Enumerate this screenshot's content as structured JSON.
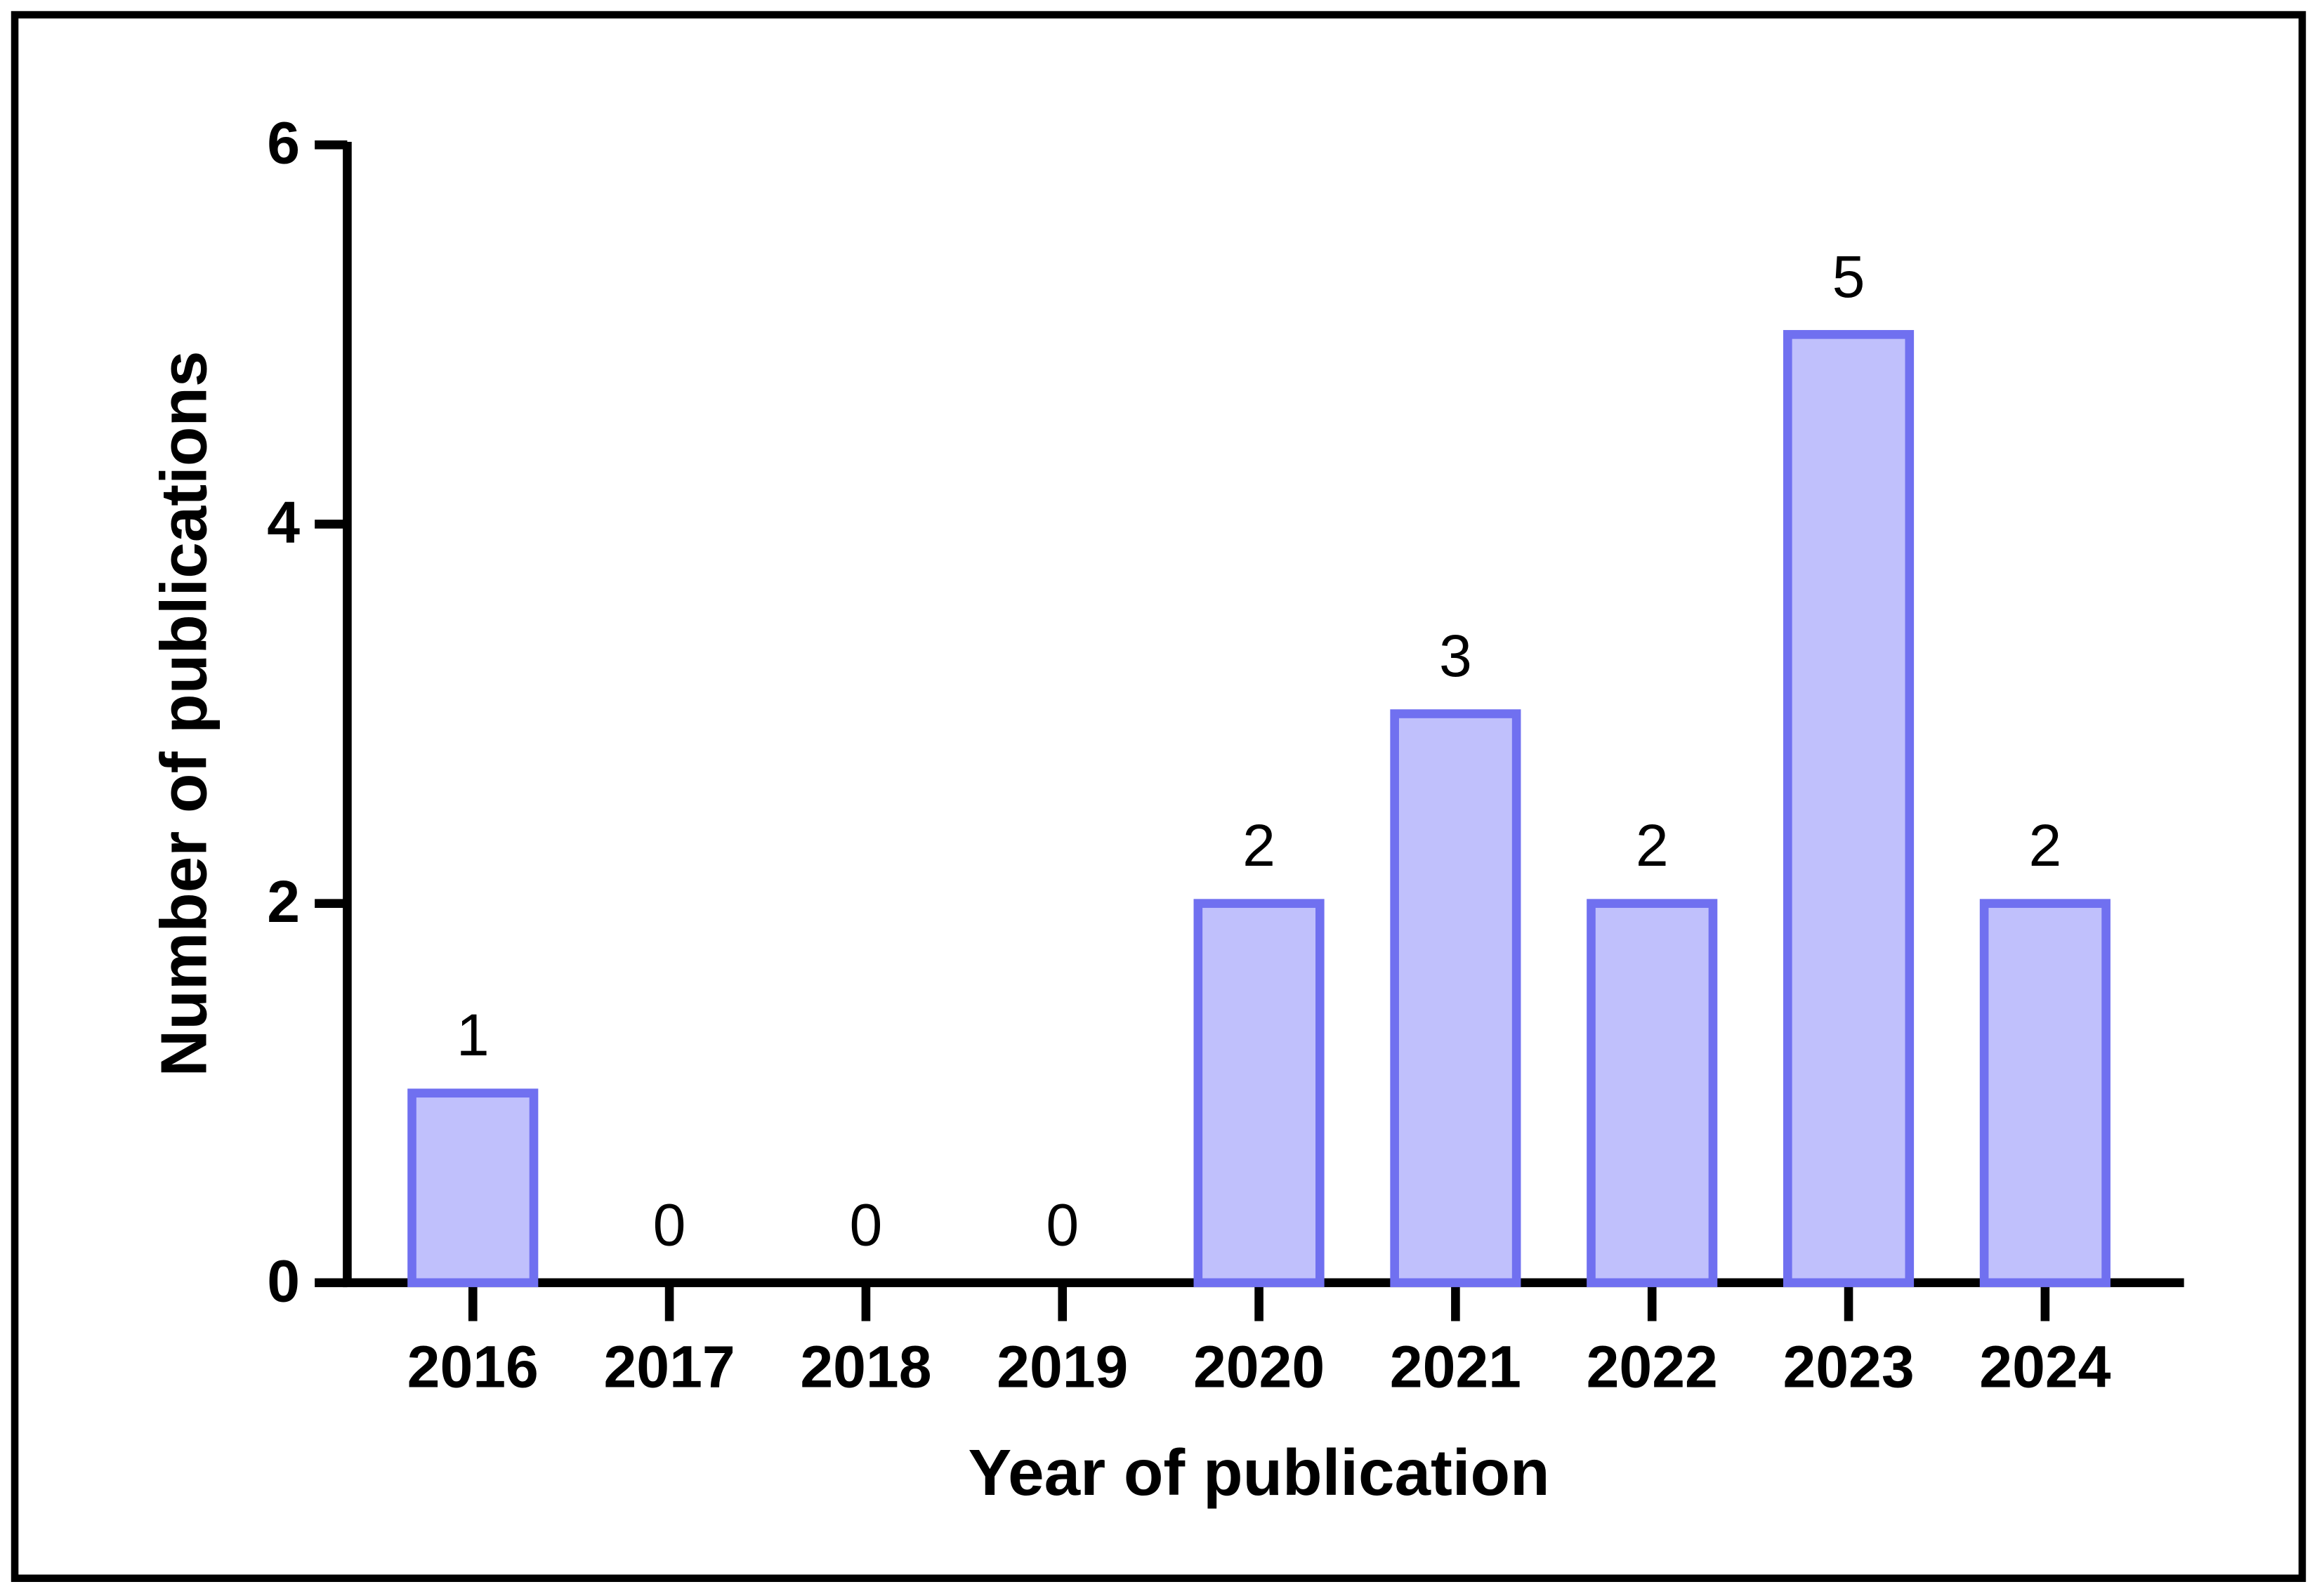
{
  "chart_data": {
    "type": "bar",
    "x_label": "Year of publication",
    "y_label": "Number of publications",
    "categories": [
      "2016",
      "2017",
      "2018",
      "2019",
      "2020",
      "2021",
      "2022",
      "2023",
      "2024"
    ],
    "values": [
      1,
      0,
      0,
      0,
      2,
      3,
      2,
      5,
      2
    ],
    "color": "#c0c0fc",
    "edge_color": "#7070f0",
    "ylim": [
      0,
      6
    ],
    "yticks": [
      0,
      2,
      4,
      6
    ],
    "grid": false
  }
}
